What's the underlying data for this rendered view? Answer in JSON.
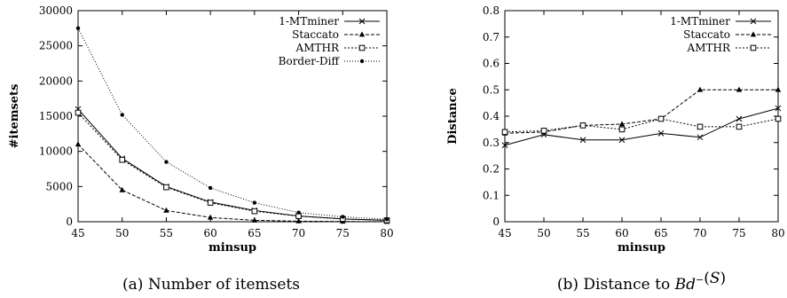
{
  "chart_data": [
    {
      "type": "line",
      "caption_prefix": "(a)",
      "caption_text": "Number of itemsets",
      "xlabel": "minsup",
      "ylabel": "#itemsets",
      "x": [
        45,
        50,
        55,
        60,
        65,
        70,
        75,
        80
      ],
      "xlim": [
        45,
        80
      ],
      "ylim": [
        0,
        30000
      ],
      "yticks": [
        0,
        5000,
        10000,
        15000,
        20000,
        25000,
        30000
      ],
      "xticks": [
        45,
        50,
        55,
        60,
        65,
        70,
        75,
        80
      ],
      "legend_position": "top-right",
      "series": [
        {
          "name": "1-MTminer",
          "marker": "x",
          "dash": "solid",
          "values": [
            16000,
            9000,
            5000,
            2800,
            1600,
            800,
            400,
            200
          ]
        },
        {
          "name": "Staccato",
          "marker": "triangle",
          "dash": "dashed",
          "values": [
            11000,
            4500,
            1600,
            600,
            200,
            80,
            30,
            10
          ]
        },
        {
          "name": "AMTHR",
          "marker": "square",
          "dash": "dotted",
          "values": [
            15500,
            8800,
            4900,
            2700,
            1500,
            800,
            400,
            200
          ]
        },
        {
          "name": "Border-Diff",
          "marker": "dot",
          "dash": "dotted-fine",
          "values": [
            27500,
            15200,
            8500,
            4800,
            2700,
            1300,
            700,
            350
          ]
        }
      ]
    },
    {
      "type": "line",
      "caption_prefix": "(b) Distance to",
      "caption_math_base": "Bd",
      "caption_math_sup": "−",
      "caption_math_arg": "(S)",
      "xlabel": "minsup",
      "ylabel": "Distance",
      "x": [
        45,
        50,
        55,
        60,
        65,
        70,
        75,
        80
      ],
      "xlim": [
        45,
        80
      ],
      "ylim": [
        0,
        0.8
      ],
      "yticks": [
        0,
        0.1,
        0.2,
        0.3,
        0.4,
        0.5,
        0.6,
        0.7,
        0.8
      ],
      "xticks": [
        45,
        50,
        55,
        60,
        65,
        70,
        75,
        80
      ],
      "legend_position": "top-right",
      "series": [
        {
          "name": "1-MTminer",
          "marker": "x",
          "dash": "solid",
          "values": [
            0.29,
            0.33,
            0.31,
            0.31,
            0.335,
            0.32,
            0.39,
            0.43
          ]
        },
        {
          "name": "Staccato",
          "marker": "triangle",
          "dash": "dashed",
          "values": [
            0.335,
            0.34,
            0.365,
            0.37,
            0.39,
            0.5,
            0.5,
            0.5
          ]
        },
        {
          "name": "AMTHR",
          "marker": "square",
          "dash": "dotted",
          "values": [
            0.34,
            0.345,
            0.365,
            0.35,
            0.39,
            0.36,
            0.36,
            0.39
          ]
        }
      ]
    }
  ]
}
